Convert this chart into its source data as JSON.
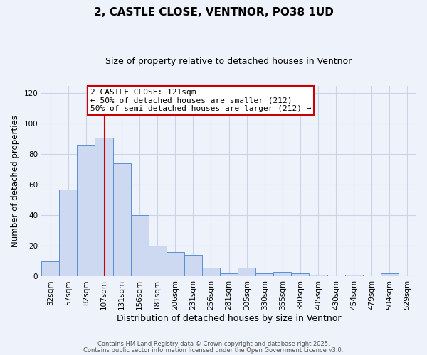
{
  "title": "2, CASTLE CLOSE, VENTNOR, PO38 1UD",
  "subtitle": "Size of property relative to detached houses in Ventnor",
  "xlabel": "Distribution of detached houses by size in Ventnor",
  "ylabel": "Number of detached properties",
  "bar_labels": [
    "32sqm",
    "57sqm",
    "82sqm",
    "107sqm",
    "131sqm",
    "156sqm",
    "181sqm",
    "206sqm",
    "231sqm",
    "256sqm",
    "281sqm",
    "305sqm",
    "330sqm",
    "355sqm",
    "380sqm",
    "405sqm",
    "430sqm",
    "454sqm",
    "479sqm",
    "504sqm",
    "529sqm"
  ],
  "bar_values": [
    10,
    57,
    86,
    91,
    74,
    40,
    20,
    16,
    14,
    6,
    2,
    6,
    2,
    3,
    2,
    1,
    0,
    1,
    0,
    2,
    0
  ],
  "bar_color": "#ccd9f0",
  "bar_edge_color": "#5b8fd4",
  "background_color": "#eef2fa",
  "ylim": [
    0,
    125
  ],
  "yticks": [
    0,
    20,
    40,
    60,
    80,
    100,
    120
  ],
  "marker_label": "2 CASTLE CLOSE: 121sqm",
  "annotation_line1": "← 50% of detached houses are smaller (212)",
  "annotation_line2": "50% of semi-detached houses are larger (212) →",
  "annotation_box_color": "#ffffff",
  "annotation_box_edge_color": "#cc0000",
  "footer_line1": "Contains HM Land Registry data © Crown copyright and database right 2025.",
  "footer_line2": "Contains public sector information licensed under the Open Government Licence v3.0.",
  "grid_color": "#c8d4e8",
  "marker_line_color": "#cc0000",
  "title_fontsize": 11,
  "subtitle_fontsize": 9,
  "ylabel_fontsize": 8.5,
  "xlabel_fontsize": 9,
  "tick_fontsize": 7.5
}
